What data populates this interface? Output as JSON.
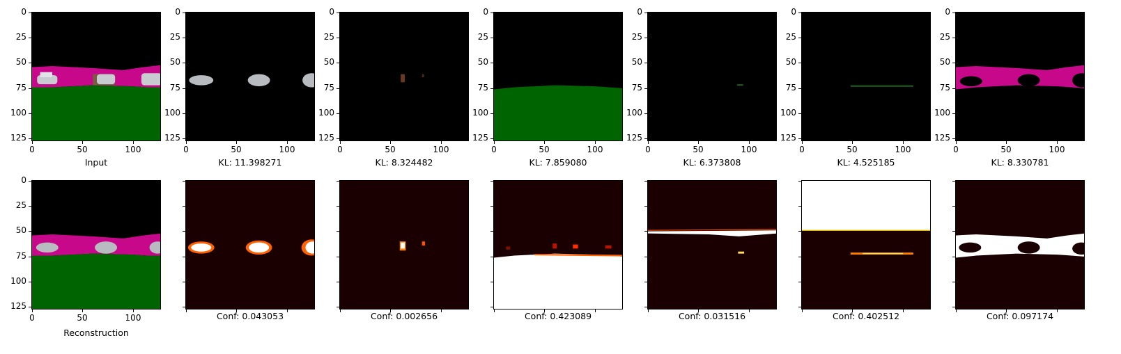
{
  "axis": {
    "yticks": [
      "0",
      "25",
      "50",
      "75",
      "100",
      "125"
    ],
    "xticks": [
      "0",
      "50",
      "100"
    ]
  },
  "top_row": [
    {
      "caption": "Input"
    },
    {
      "caption": "KL: 11.398271"
    },
    {
      "caption": "KL: 8.324482"
    },
    {
      "caption": "KL: 7.859080"
    },
    {
      "caption": "KL: 6.373808"
    },
    {
      "caption": "KL: 4.525185"
    },
    {
      "caption": "KL: 8.330781"
    }
  ],
  "bottom_row": [
    {
      "caption": "Reconstruction"
    },
    {
      "caption": "Conf: 0.043053"
    },
    {
      "caption": "Conf: 0.002656"
    },
    {
      "caption": "Conf: 0.423089"
    },
    {
      "caption": "Conf: 0.031516"
    },
    {
      "caption": "Conf: 0.402512"
    },
    {
      "caption": "Conf: 0.097174"
    }
  ],
  "colors": {
    "sky": "#000000",
    "road": "#c8088a",
    "grass": "#006400",
    "car": "#c0c4c8",
    "heat_low": "#1a0000",
    "heat_high": "#ffffff",
    "heat_mid": "#ff4000"
  }
}
